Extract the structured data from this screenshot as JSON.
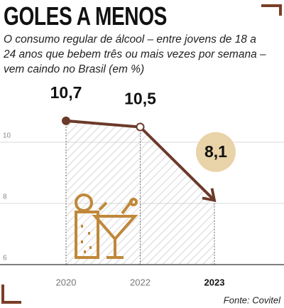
{
  "chart_data": {
    "type": "line",
    "title": "GOLES A MENOS",
    "subtitle": "O consumo regular de álcool – entre jovens de 18 a 24 anos que bebem três ou mais vezes por semana – vem caindo no Brasil (em %)",
    "source": "Fonte: Covitel",
    "categories": [
      "2020",
      "2022",
      "2023"
    ],
    "values": [
      10.7,
      10.5,
      8.1
    ],
    "value_labels": [
      "10,7",
      "10,5",
      "8,1"
    ],
    "color": "#6b3a2a",
    "ylim": [
      6,
      11
    ],
    "yticks": [
      6,
      8,
      10
    ],
    "grid": true
  }
}
